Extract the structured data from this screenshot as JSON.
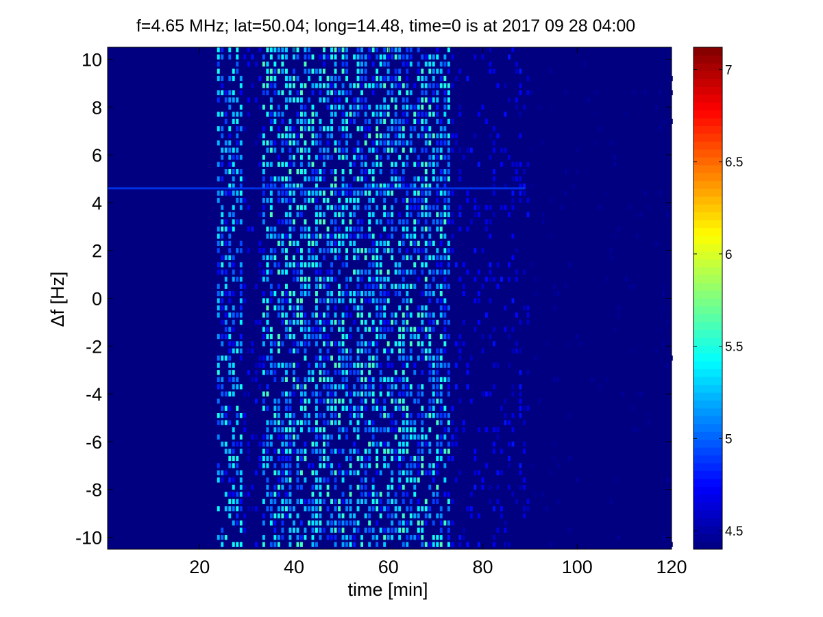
{
  "chart_data": {
    "type": "heatmap",
    "title": "f=4.65 MHz;  lat=50.04; long=14.48, time=0 is at 2017 09 28 04:00",
    "xlabel": "time [min]",
    "ylabel": "Δf [Hz]",
    "xlim": [
      0.5,
      120
    ],
    "ylim": [
      -10.5,
      10.5
    ],
    "x_ticks": [
      20,
      40,
      60,
      80,
      100,
      120
    ],
    "x_tick_labels": [
      "20",
      "40",
      "60",
      "80",
      "100",
      "120"
    ],
    "y_ticks": [
      10,
      8,
      6,
      4,
      2,
      0,
      -2,
      -4,
      -6,
      -8,
      -10
    ],
    "y_tick_labels": [
      "10",
      "8",
      "6",
      "4",
      "2",
      "0",
      "-2",
      "-4",
      "-6",
      "-8",
      "-10"
    ],
    "colorbar": {
      "colormap": "jet",
      "clim": [
        4.4,
        7.12
      ],
      "ticks": [
        4.5,
        5,
        5.5,
        6,
        6.5,
        7
      ],
      "tick_labels": [
        "4.5",
        "5",
        "5.5",
        "6",
        "6.5",
        "7"
      ]
    },
    "background_level": 4.42,
    "activity_bands": [
      {
        "x_start": 23,
        "x_end": 29,
        "mean_level": 4.95
      },
      {
        "x_start": 29,
        "x_end": 33,
        "mean_level": 4.6
      },
      {
        "x_start": 33,
        "x_end": 73,
        "mean_level": 5.0
      },
      {
        "x_start": 73,
        "x_end": 90,
        "mean_level": 4.6
      },
      {
        "x_start": 90,
        "x_end": 120,
        "mean_level": 4.45
      }
    ],
    "persistent_line": {
      "df": 4.6,
      "x_start": 0.5,
      "x_end": 89,
      "level": 4.9
    },
    "colors": {
      "background": "#000080",
      "frame": "#000000",
      "page": "#ffffff"
    }
  }
}
